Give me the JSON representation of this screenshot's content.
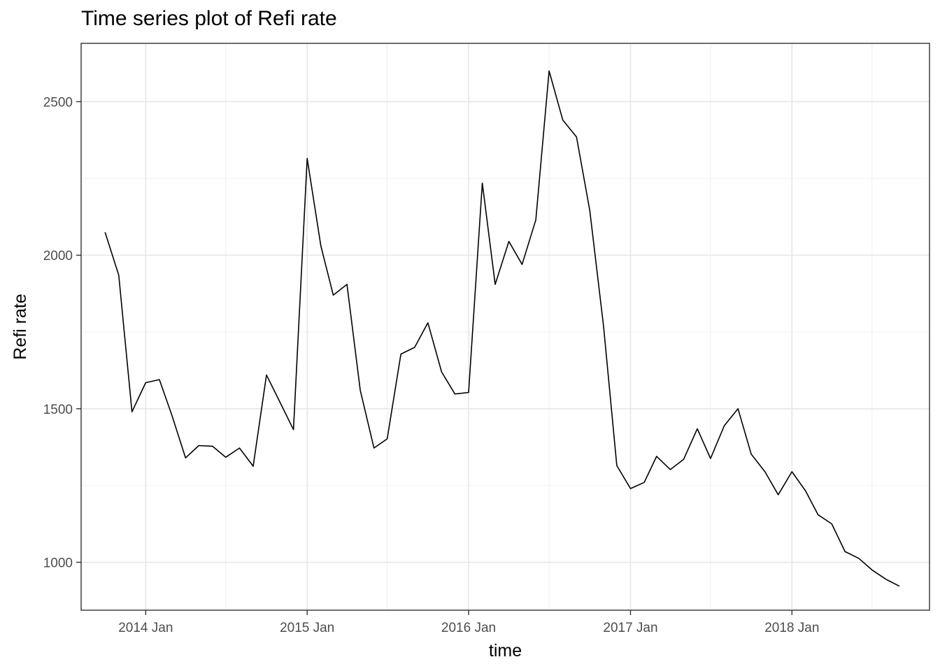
{
  "chart_data": {
    "type": "line",
    "title": "Time series plot of Refi rate",
    "xlabel": "time",
    "ylabel": "Refi rate",
    "x_tick_labels": [
      "2014 Jan",
      "2015 Jan",
      "2016 Jan",
      "2017 Jan",
      "2018 Jan"
    ],
    "y_ticks": [
      1000,
      1500,
      2000,
      2500
    ],
    "y_tick_labels": [
      "1000",
      "1500",
      "2000",
      "2500"
    ],
    "xlim": [
      "2013-08-08",
      "2018-11-08"
    ],
    "ylim": [
      844,
      2690
    ],
    "grid": true,
    "line_color": "#000000",
    "series": [
      {
        "x": [
          "2013-10",
          "2013-11",
          "2013-12",
          "2014-01",
          "2014-02",
          "2014-03",
          "2014-04",
          "2014-05",
          "2014-06",
          "2014-07",
          "2014-08",
          "2014-09",
          "2014-10",
          "2014-11",
          "2014-12",
          "2015-01",
          "2015-02",
          "2015-03",
          "2015-04",
          "2015-05",
          "2015-06",
          "2015-07",
          "2015-08",
          "2015-09",
          "2015-10",
          "2015-11",
          "2015-12",
          "2016-01",
          "2016-02",
          "2016-03",
          "2016-04",
          "2016-05",
          "2016-06",
          "2016-07",
          "2016-08",
          "2016-09",
          "2016-10",
          "2016-11",
          "2016-12",
          "2017-01",
          "2017-02",
          "2017-03",
          "2017-04",
          "2017-05",
          "2017-06",
          "2017-07",
          "2017-08",
          "2017-09",
          "2017-10",
          "2017-11",
          "2017-12",
          "2018-01",
          "2018-02",
          "2018-03",
          "2018-04",
          "2018-05",
          "2018-06",
          "2018-07",
          "2018-08",
          "2018-09"
        ],
        "values": [
          2075,
          1935,
          1490,
          1585,
          1595,
          1480,
          1340,
          1380,
          1378,
          1342,
          1372,
          1313,
          1610,
          1520,
          1432,
          2315,
          2030,
          1870,
          1905,
          1560,
          1372,
          1402,
          1678,
          1700,
          1780,
          1620,
          1548,
          1553,
          2235,
          1905,
          2045,
          1970,
          2115,
          2600,
          2440,
          2385,
          2145,
          1770,
          1315,
          1240,
          1260,
          1345,
          1302,
          1335,
          1435,
          1338,
          1445,
          1500,
          1352,
          1295,
          1220,
          1295,
          1232,
          1155,
          1125,
          1035,
          1013,
          975,
          945,
          922
        ]
      }
    ]
  }
}
